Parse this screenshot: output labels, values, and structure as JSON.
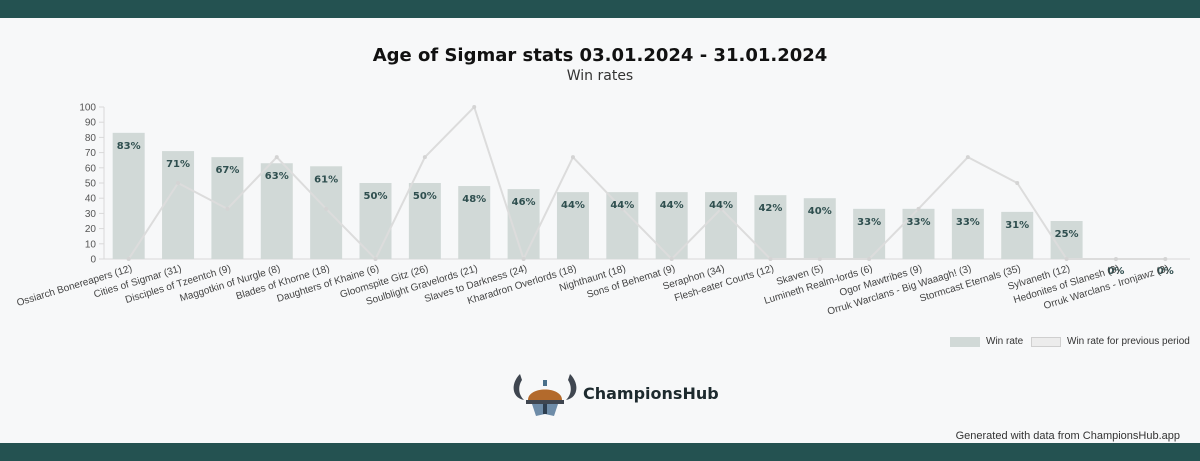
{
  "page": {
    "title": "Age of Sigmar stats 03.01.2024 - 31.01.2024",
    "subtitle": "Win rates",
    "brand": "ChampionsHub",
    "footer": "Generated with data from ChampionsHub.app"
  },
  "colors": {
    "bar": "#d1d9d7",
    "previous_line": "#dcdcdc",
    "frame": "#245251"
  },
  "chart_data": {
    "type": "bar",
    "title": "Age of Sigmar stats 03.01.2024 - 31.01.2024",
    "subtitle": "Win rates",
    "ylim": [
      0,
      100
    ],
    "yticks": [
      0,
      10,
      20,
      30,
      40,
      50,
      60,
      70,
      80,
      90,
      100
    ],
    "grid": false,
    "legend_position": "bottom-right",
    "categories": [
      "Ossiarch Bonereapers (12)",
      "Cities of Sigmar (31)",
      "Disciples of Tzeentch (9)",
      "Maggotkin of Nurgle (8)",
      "Blades of Khorne (18)",
      "Daughters of Khaine (6)",
      "Gloomspite Gitz (26)",
      "Soulblight Gravelords (21)",
      "Slaves to Darkness (24)",
      "Kharadron Overlords (18)",
      "Nighthaunt (18)",
      "Sons of Behemat (9)",
      "Seraphon (34)",
      "Flesh-eater Courts (12)",
      "Skaven (5)",
      "Lumineth Realm-lords (6)",
      "Ogor Mawtribes (9)",
      "Orruk Warclans - Big Waaagh! (3)",
      "Stormcast Eternals (35)",
      "Sylvaneth (12)",
      "Hedonites of Slanesh (3)",
      "Orruk Warclans - Ironjawz (3)"
    ],
    "series": [
      {
        "name": "Win rate",
        "type": "bar",
        "values": [
          83,
          71,
          67,
          63,
          61,
          50,
          50,
          48,
          46,
          44,
          44,
          44,
          44,
          42,
          40,
          33,
          33,
          33,
          31,
          25,
          0,
          0
        ],
        "labels": [
          "83%",
          "71%",
          "67%",
          "63%",
          "61%",
          "50%",
          "50%",
          "48%",
          "46%",
          "44%",
          "44%",
          "44%",
          "44%",
          "42%",
          "40%",
          "33%",
          "33%",
          "33%",
          "31%",
          "25%",
          "0%",
          "0%"
        ]
      },
      {
        "name": "Win rate for previous period",
        "type": "line",
        "values": [
          0,
          50,
          33,
          67,
          33,
          0,
          67,
          100,
          0,
          67,
          33,
          0,
          33,
          0,
          0,
          0,
          33,
          67,
          50,
          0,
          0,
          0
        ]
      }
    ]
  }
}
